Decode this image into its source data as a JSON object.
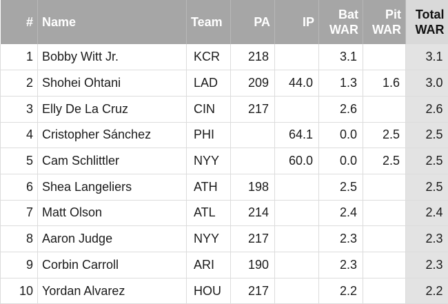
{
  "table": {
    "headers": {
      "rank": "#",
      "name": "Name",
      "team": "Team",
      "pa": "PA",
      "ip": "IP",
      "bat_line1": "Bat",
      "bat_line2": "WAR",
      "pit_line1": "Pit",
      "pit_line2": "WAR",
      "total_line1": "Total",
      "total_line2": "WAR"
    },
    "rows": [
      {
        "rank": "1",
        "name": "Bobby Witt Jr.",
        "team": "KCR",
        "pa": "218",
        "ip": "",
        "bat_war": "3.1",
        "pit_war": "",
        "total_war": "3.1"
      },
      {
        "rank": "2",
        "name": "Shohei Ohtani",
        "team": "LAD",
        "pa": "209",
        "ip": "44.0",
        "bat_war": "1.3",
        "pit_war": "1.6",
        "total_war": "3.0"
      },
      {
        "rank": "3",
        "name": "Elly De La Cruz",
        "team": "CIN",
        "pa": "217",
        "ip": "",
        "bat_war": "2.6",
        "pit_war": "",
        "total_war": "2.6"
      },
      {
        "rank": "4",
        "name": "Cristopher Sánchez",
        "team": "PHI",
        "pa": "",
        "ip": "64.1",
        "bat_war": "0.0",
        "pit_war": "2.5",
        "total_war": "2.5"
      },
      {
        "rank": "5",
        "name": "Cam Schlittler",
        "team": "NYY",
        "pa": "",
        "ip": "60.0",
        "bat_war": "0.0",
        "pit_war": "2.5",
        "total_war": "2.5"
      },
      {
        "rank": "6",
        "name": "Shea Langeliers",
        "team": "ATH",
        "pa": "198",
        "ip": "",
        "bat_war": "2.5",
        "pit_war": "",
        "total_war": "2.5"
      },
      {
        "rank": "7",
        "name": "Matt Olson",
        "team": "ATL",
        "pa": "214",
        "ip": "",
        "bat_war": "2.4",
        "pit_war": "",
        "total_war": "2.4"
      },
      {
        "rank": "8",
        "name": "Aaron Judge",
        "team": "NYY",
        "pa": "217",
        "ip": "",
        "bat_war": "2.3",
        "pit_war": "",
        "total_war": "2.3"
      },
      {
        "rank": "9",
        "name": "Corbin Carroll",
        "team": "ARI",
        "pa": "190",
        "ip": "",
        "bat_war": "2.3",
        "pit_war": "",
        "total_war": "2.3"
      },
      {
        "rank": "10",
        "name": "Yordan Alvarez",
        "team": "HOU",
        "pa": "217",
        "ip": "",
        "bat_war": "2.2",
        "pit_war": "",
        "total_war": "2.2"
      }
    ]
  }
}
